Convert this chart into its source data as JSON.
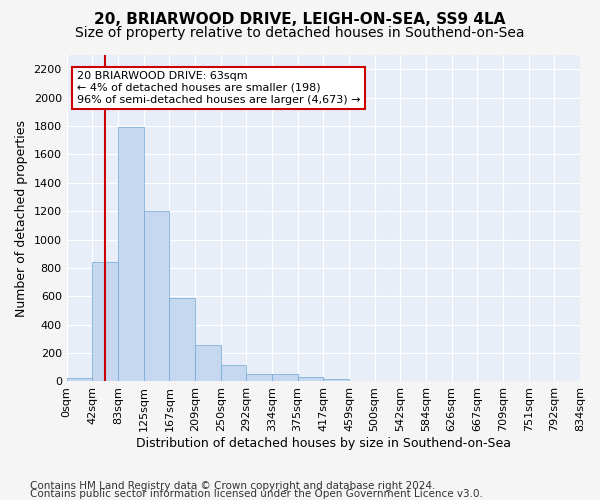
{
  "title1": "20, BRIARWOOD DRIVE, LEIGH-ON-SEA, SS9 4LA",
  "title2": "Size of property relative to detached houses in Southend-on-Sea",
  "xlabel": "Distribution of detached houses by size in Southend-on-Sea",
  "ylabel": "Number of detached properties",
  "footer1": "Contains HM Land Registry data © Crown copyright and database right 2024.",
  "footer2": "Contains public sector information licensed under the Open Government Licence v3.0.",
  "bar_values": [
    25,
    845,
    1790,
    1200,
    585,
    260,
    115,
    50,
    50,
    30,
    15,
    0,
    0,
    0,
    0,
    0,
    0,
    0,
    0,
    0
  ],
  "bar_labels": [
    "0sqm",
    "42sqm",
    "83sqm",
    "125sqm",
    "167sqm",
    "209sqm",
    "250sqm",
    "292sqm",
    "334sqm",
    "375sqm",
    "417sqm",
    "459sqm",
    "500sqm",
    "542sqm",
    "584sqm",
    "626sqm",
    "667sqm",
    "709sqm",
    "751sqm",
    "792sqm",
    "834sqm"
  ],
  "bar_color": "#c5d8f0",
  "bar_edge_color": "#6fa8d6",
  "vline_color": "#cc0000",
  "annotation_text": "20 BRIARWOOD DRIVE: 63sqm\n← 4% of detached houses are smaller (198)\n96% of semi-detached houses are larger (4,673) →",
  "annotation_box_color": "#ffffff",
  "annotation_box_edge": "#cc0000",
  "ylim": [
    0,
    2300
  ],
  "yticks": [
    0,
    200,
    400,
    600,
    800,
    1000,
    1200,
    1400,
    1600,
    1800,
    2000,
    2200
  ],
  "background_color": "#e8eef8",
  "grid_color": "#ffffff",
  "title1_fontsize": 11,
  "title2_fontsize": 10,
  "xlabel_fontsize": 9,
  "ylabel_fontsize": 9,
  "tick_fontsize": 8,
  "footer_fontsize": 7.5
}
